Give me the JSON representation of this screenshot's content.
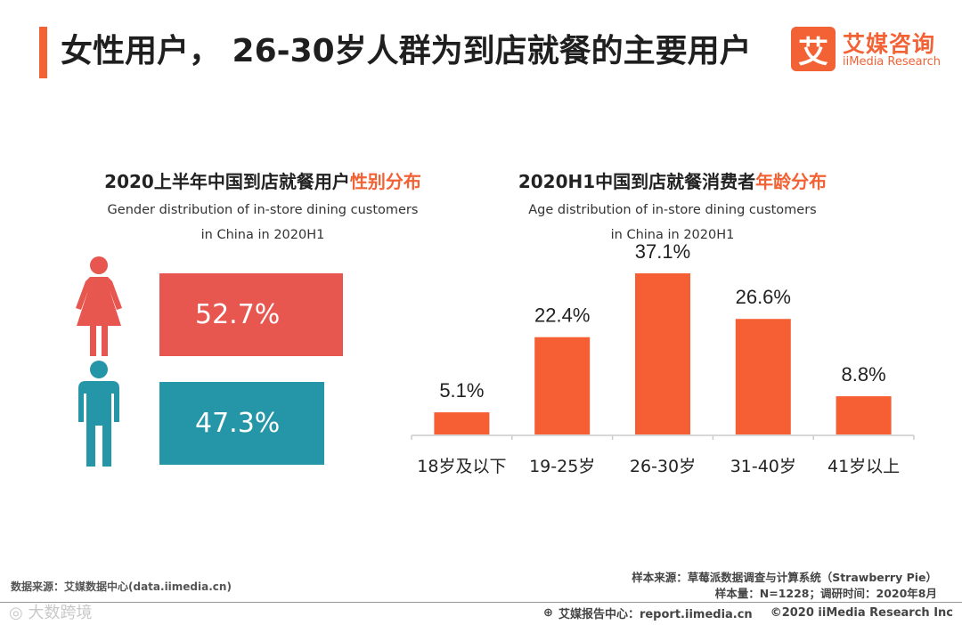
{
  "colors": {
    "accent": "#f26235",
    "female": "#e85650",
    "male": "#2596a8",
    "bar": "#f55f33",
    "axis": "#cccccc"
  },
  "header": {
    "title": "女性用户， 26-30岁人群为到店就餐的主要用户",
    "logo_mark": "艾",
    "logo_cn": "艾媒咨询",
    "logo_en": "iiMedia Research"
  },
  "gender_section": {
    "title_main": "2020上半年中国到店就餐用户",
    "title_highlight": "性别分布",
    "subtitle_line1": "Gender distribution of in-store dining customers",
    "subtitle_line2": "in China in 2020H1"
  },
  "age_section": {
    "title_main": "2020H1中国到店就餐消费者",
    "title_highlight": "年龄分布",
    "subtitle_line1": "Age distribution of in-store dining customers",
    "subtitle_line2": "in China in 2020H1"
  },
  "chart_data": [
    {
      "type": "bar",
      "orientation": "horizontal",
      "title": "2020上半年中国到店就餐用户性别分布",
      "subtitle": "Gender distribution of in-store dining customers in China in 2020H1",
      "categories": [
        "female",
        "male"
      ],
      "icons": [
        "female-icon",
        "male-icon"
      ],
      "values": [
        52.7,
        47.3
      ],
      "labels": [
        "52.7%",
        "47.3%"
      ],
      "unit": "%"
    },
    {
      "type": "bar",
      "title": "2020H1中国到店就餐消费者年龄分布",
      "subtitle": "Age distribution of in-store dining customers in China in 2020H1",
      "categories": [
        "18岁及以下",
        "19-25岁",
        "26-30岁",
        "31-40岁",
        "41岁以上"
      ],
      "values": [
        5.1,
        22.4,
        37.1,
        26.6,
        8.8
      ],
      "labels": [
        "5.1%",
        "22.4%",
        "37.1%",
        "26.6%",
        "8.8%"
      ],
      "unit": "%",
      "ylim": [
        0,
        37.1
      ]
    }
  ],
  "footer": {
    "source_left": "数据来源：艾媒数据中心(data.iimedia.cn)",
    "sample_source": "样本来源：草莓派数据调查与计算系统（Strawberry Pie）",
    "sample_info": "样本量：N=1228；调研时间：2020年8月",
    "report_center": "艾媒报告中心：report.iimedia.cn",
    "copyright": "©2020  iiMedia Research  Inc",
    "watermark": "大数跨境"
  }
}
